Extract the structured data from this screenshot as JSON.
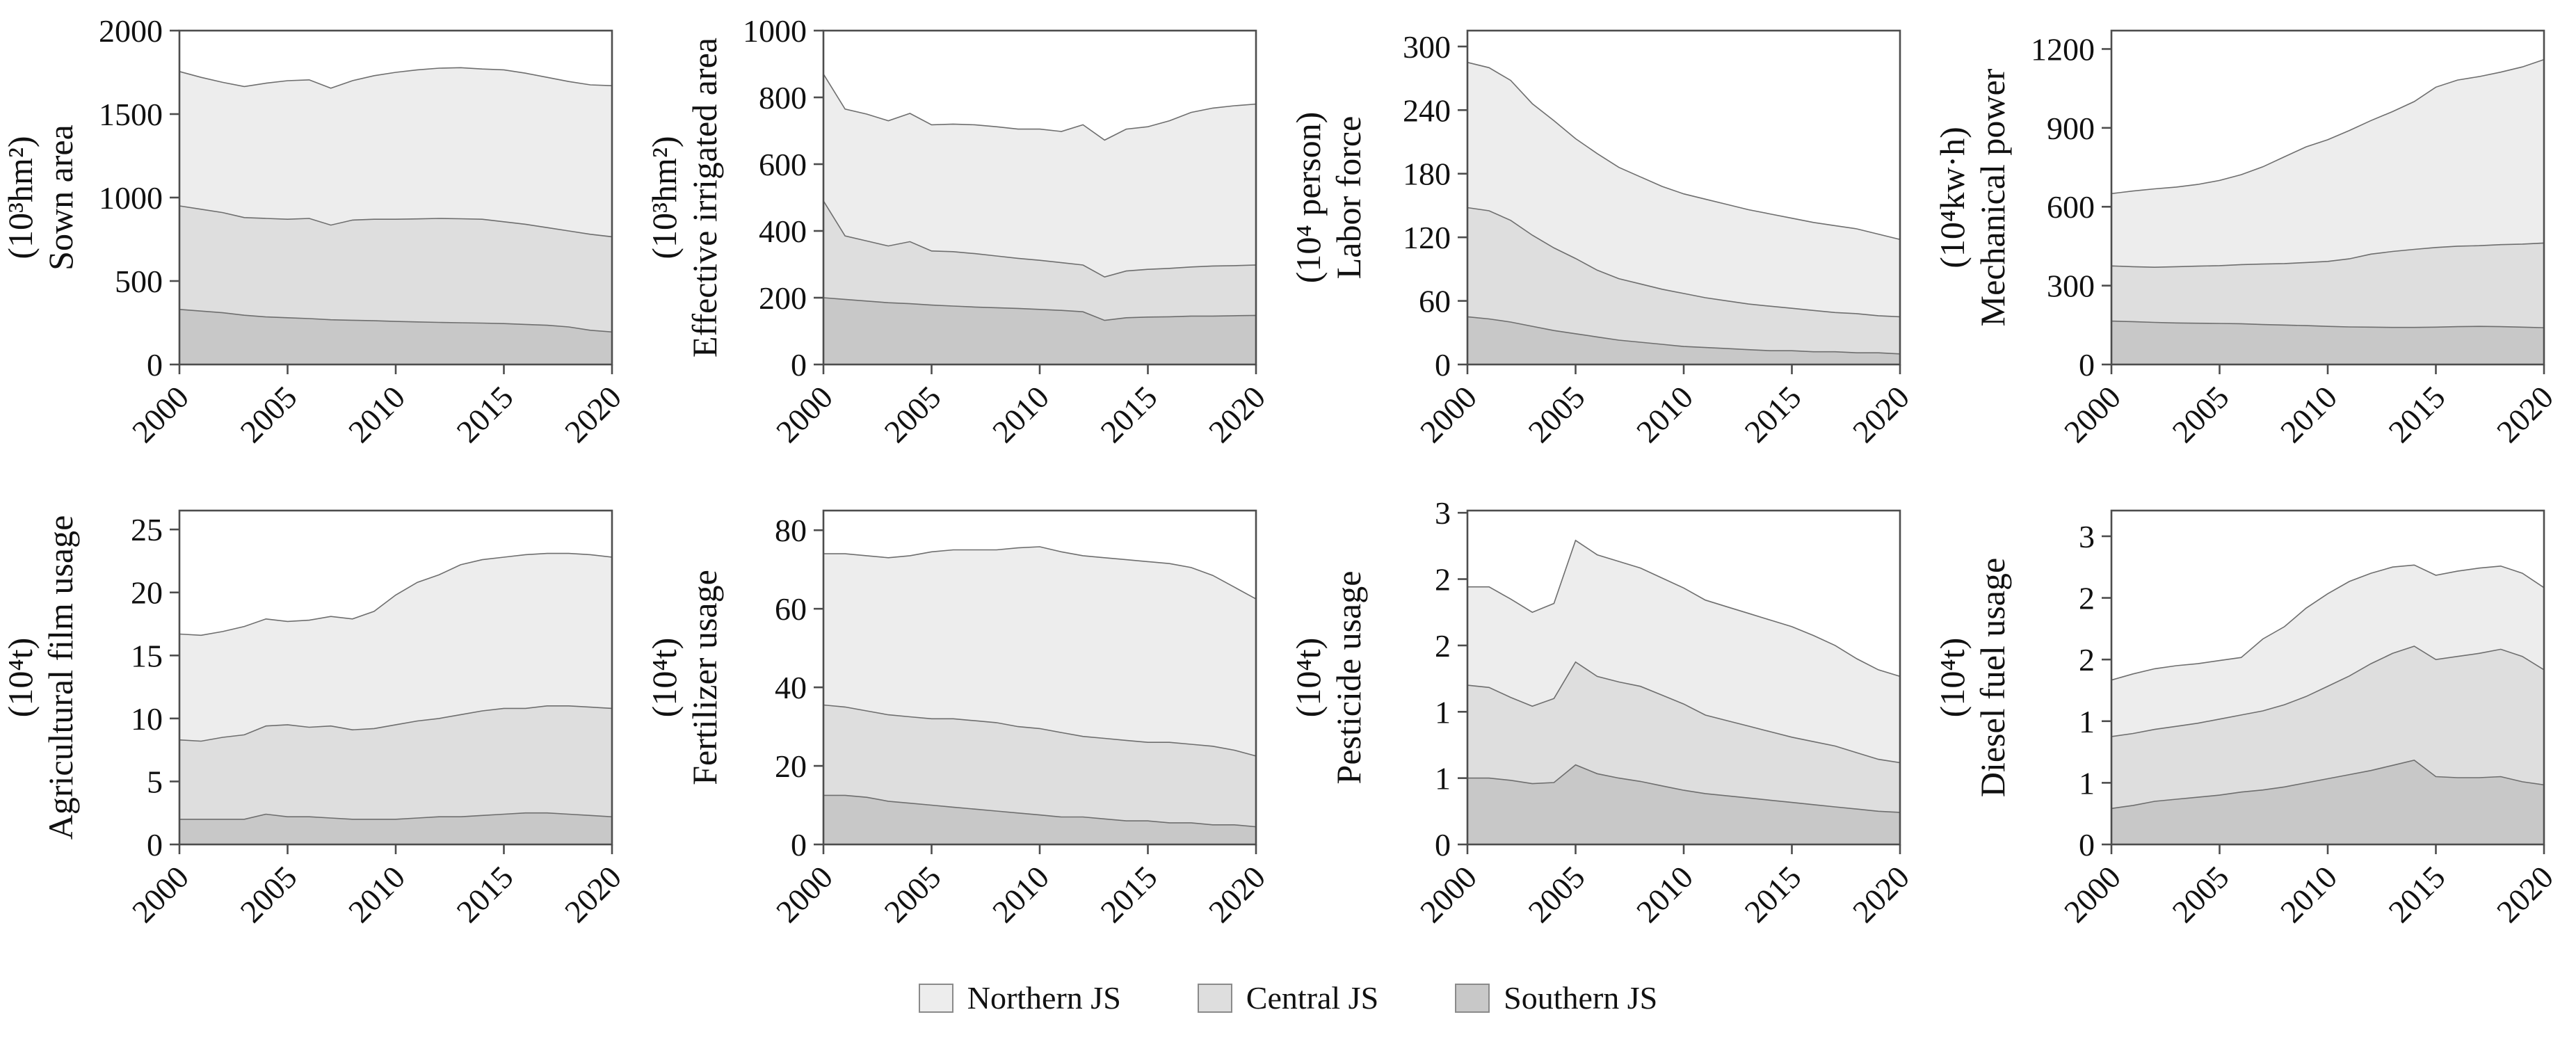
{
  "legend": {
    "items": [
      {
        "label": "Northern JS",
        "color": "#ededed"
      },
      {
        "label": "Central JS",
        "color": "#dedede"
      },
      {
        "label": "Southern JS",
        "color": "#c8c8c8"
      }
    ]
  },
  "style_colors": {
    "area_edge": "#6e6e6e",
    "frame": "#4d4d4d",
    "text": "#111111"
  },
  "chart_data": [
    {
      "id": "sown-area",
      "type": "area",
      "stacked": true,
      "ylabel": "Sown area",
      "unit": "(10³hm²)",
      "x": [
        2000,
        2001,
        2002,
        2003,
        2004,
        2005,
        2006,
        2007,
        2008,
        2009,
        2010,
        2011,
        2012,
        2013,
        2014,
        2015,
        2016,
        2017,
        2018,
        2019,
        2020
      ],
      "xticks": [
        2000,
        2005,
        2010,
        2015,
        2020
      ],
      "ylim": [
        0,
        2000
      ],
      "yticks": [
        0,
        500,
        1000,
        1500,
        2000
      ],
      "ytick_labels": [
        "0",
        "500",
        "1000",
        "1500",
        "2000"
      ],
      "series": [
        {
          "name": "Southern JS",
          "color": "#c8c8c8",
          "values": [
            330,
            320,
            310,
            295,
            285,
            280,
            275,
            268,
            265,
            262,
            258,
            255,
            252,
            250,
            248,
            245,
            240,
            235,
            225,
            205,
            195
          ]
        },
        {
          "name": "Central JS",
          "color": "#dedede",
          "values": [
            620,
            610,
            600,
            585,
            590,
            590,
            600,
            567,
            600,
            608,
            612,
            617,
            623,
            623,
            622,
            610,
            600,
            585,
            575,
            575,
            570
          ]
        },
        {
          "name": "Northern JS",
          "color": "#ededed",
          "values": [
            805,
            790,
            780,
            785,
            810,
            830,
            830,
            820,
            835,
            860,
            880,
            893,
            900,
            905,
            900,
            910,
            905,
            900,
            895,
            895,
            905
          ]
        }
      ]
    },
    {
      "id": "effective-irrigated-area",
      "type": "area",
      "stacked": true,
      "ylabel": "Effective irrigated area",
      "unit": "(10³hm²)",
      "x": [
        2000,
        2001,
        2002,
        2003,
        2004,
        2005,
        2006,
        2007,
        2008,
        2009,
        2010,
        2011,
        2012,
        2013,
        2014,
        2015,
        2016,
        2017,
        2018,
        2019,
        2020
      ],
      "xticks": [
        2000,
        2005,
        2010,
        2015,
        2020
      ],
      "ylim": [
        0,
        1000
      ],
      "yticks": [
        0,
        200,
        400,
        600,
        800,
        1000
      ],
      "ytick_labels": [
        "0",
        "200",
        "400",
        "600",
        "800",
        "1000"
      ],
      "series": [
        {
          "name": "Southern JS",
          "color": "#c8c8c8",
          "values": [
            200,
            195,
            190,
            185,
            182,
            178,
            175,
            172,
            170,
            168,
            165,
            162,
            158,
            132,
            140,
            142,
            143,
            145,
            145,
            146,
            147
          ]
        },
        {
          "name": "Central JS",
          "color": "#dedede",
          "values": [
            290,
            190,
            180,
            170,
            186,
            162,
            163,
            160,
            155,
            150,
            147,
            143,
            140,
            130,
            140,
            143,
            145,
            147,
            150,
            150,
            151
          ]
        },
        {
          "name": "Northern JS",
          "color": "#ededed",
          "values": [
            380,
            380,
            380,
            375,
            384,
            378,
            382,
            386,
            387,
            387,
            393,
            393,
            420,
            410,
            425,
            427,
            442,
            463,
            473,
            479,
            482
          ]
        }
      ]
    },
    {
      "id": "labor-force",
      "type": "area",
      "stacked": true,
      "ylabel": "Labor force",
      "unit": "(10⁴ person)",
      "x": [
        2000,
        2001,
        2002,
        2003,
        2004,
        2005,
        2006,
        2007,
        2008,
        2009,
        2010,
        2011,
        2012,
        2013,
        2014,
        2015,
        2016,
        2017,
        2018,
        2019,
        2020
      ],
      "xticks": [
        2000,
        2005,
        2010,
        2015,
        2020
      ],
      "ylim": [
        0,
        315
      ],
      "yticks": [
        0,
        60,
        120,
        180,
        240,
        300
      ],
      "ytick_labels": [
        "0",
        "60",
        "120",
        "180",
        "240",
        "300"
      ],
      "series": [
        {
          "name": "Southern JS",
          "color": "#c8c8c8",
          "values": [
            45,
            43,
            40,
            36,
            32,
            29,
            26,
            23,
            21,
            19,
            17,
            16,
            15,
            14,
            13,
            13,
            12,
            12,
            11,
            11,
            10
          ]
        },
        {
          "name": "Central JS",
          "color": "#dedede",
          "values": [
            103,
            102,
            96,
            86,
            78,
            71,
            63,
            58,
            55,
            52,
            50,
            47,
            45,
            43,
            42,
            40,
            39,
            37,
            37,
            35,
            35
          ]
        },
        {
          "name": "Northern JS",
          "color": "#ededed",
          "values": [
            137,
            135,
            132,
            124,
            120,
            113,
            110,
            105,
            101,
            97,
            94,
            93,
            91,
            89,
            87,
            85,
            83,
            82,
            80,
            77,
            73
          ]
        }
      ]
    },
    {
      "id": "mechanical-power",
      "type": "area",
      "stacked": true,
      "ylabel": "Mechanical power",
      "unit": "(10⁴kw·h)",
      "x": [
        2000,
        2001,
        2002,
        2003,
        2004,
        2005,
        2006,
        2007,
        2008,
        2009,
        2010,
        2011,
        2012,
        2013,
        2014,
        2015,
        2016,
        2017,
        2018,
        2019,
        2020
      ],
      "xticks": [
        2000,
        2005,
        2010,
        2015,
        2020
      ],
      "ylim": [
        0,
        1270
      ],
      "yticks": [
        0,
        300,
        600,
        900,
        1200
      ],
      "ytick_labels": [
        "0",
        "300",
        "600",
        "900",
        "1200"
      ],
      "series": [
        {
          "name": "Southern JS",
          "color": "#c8c8c8",
          "values": [
            165,
            163,
            160,
            158,
            157,
            156,
            155,
            152,
            150,
            148,
            145,
            143,
            142,
            141,
            141,
            142,
            144,
            145,
            144,
            142,
            140
          ]
        },
        {
          "name": "Central JS",
          "color": "#dedede",
          "values": [
            210,
            209,
            210,
            214,
            217,
            220,
            225,
            230,
            234,
            240,
            247,
            259,
            278,
            289,
            297,
            303,
            306,
            307,
            312,
            316,
            322
          ]
        },
        {
          "name": "Northern JS",
          "color": "#ededed",
          "values": [
            275,
            288,
            298,
            303,
            311,
            324,
            342,
            370,
            406,
            440,
            463,
            488,
            508,
            532,
            562,
            610,
            632,
            643,
            656,
            674,
            698
          ]
        }
      ]
    },
    {
      "id": "agricultural-film-usage",
      "type": "area",
      "stacked": true,
      "ylabel": "Agricultural film usage",
      "unit": "(10⁴t)",
      "x": [
        2000,
        2001,
        2002,
        2003,
        2004,
        2005,
        2006,
        2007,
        2008,
        2009,
        2010,
        2011,
        2012,
        2013,
        2014,
        2015,
        2016,
        2017,
        2018,
        2019,
        2020
      ],
      "xticks": [
        2000,
        2005,
        2010,
        2015,
        2020
      ],
      "ylim": [
        0,
        26.5
      ],
      "yticks": [
        0,
        5,
        10,
        15,
        20,
        25
      ],
      "ytick_labels": [
        "0",
        "5",
        "10",
        "15",
        "20",
        "25"
      ],
      "series": [
        {
          "name": "Southern JS",
          "color": "#c8c8c8",
          "values": [
            2.0,
            2.0,
            2.0,
            2.0,
            2.4,
            2.2,
            2.2,
            2.1,
            2.0,
            2.0,
            2.0,
            2.1,
            2.2,
            2.2,
            2.3,
            2.4,
            2.5,
            2.5,
            2.4,
            2.3,
            2.2
          ]
        },
        {
          "name": "Central JS",
          "color": "#dedede",
          "values": [
            6.3,
            6.2,
            6.5,
            6.7,
            7.0,
            7.3,
            7.1,
            7.3,
            7.1,
            7.2,
            7.5,
            7.7,
            7.8,
            8.1,
            8.3,
            8.4,
            8.3,
            8.5,
            8.6,
            8.6,
            8.6
          ]
        },
        {
          "name": "Northern JS",
          "color": "#ededed",
          "values": [
            8.4,
            8.4,
            8.4,
            8.6,
            8.5,
            8.2,
            8.5,
            8.7,
            8.8,
            9.3,
            10.3,
            11.0,
            11.4,
            11.9,
            12.0,
            12.0,
            12.2,
            12.1,
            12.1,
            12.1,
            12.0
          ]
        }
      ]
    },
    {
      "id": "fertilizer-usage",
      "type": "area",
      "stacked": true,
      "ylabel": "Fertilizer usage",
      "unit": "(10⁴t)",
      "x": [
        2000,
        2001,
        2002,
        2003,
        2004,
        2005,
        2006,
        2007,
        2008,
        2009,
        2010,
        2011,
        2012,
        2013,
        2014,
        2015,
        2016,
        2017,
        2018,
        2019,
        2020
      ],
      "xticks": [
        2000,
        2005,
        2010,
        2015,
        2020
      ],
      "ylim": [
        0,
        85
      ],
      "yticks": [
        0,
        20,
        40,
        60,
        80
      ],
      "ytick_labels": [
        "0",
        "20",
        "40",
        "60",
        "80"
      ],
      "series": [
        {
          "name": "Southern JS",
          "color": "#c8c8c8",
          "values": [
            12.5,
            12.5,
            12.0,
            11.0,
            10.5,
            10.0,
            9.5,
            9.0,
            8.5,
            8.0,
            7.5,
            7.0,
            7.0,
            6.5,
            6.0,
            6.0,
            5.5,
            5.5,
            5.0,
            5.0,
            4.5
          ]
        },
        {
          "name": "Central JS",
          "color": "#dedede",
          "values": [
            23.0,
            22.5,
            22.0,
            22.0,
            22.0,
            22.0,
            22.5,
            22.5,
            22.5,
            22.0,
            22.0,
            21.5,
            20.5,
            20.5,
            20.5,
            20.0,
            20.5,
            20.0,
            20.0,
            19.0,
            18.0
          ]
        },
        {
          "name": "Northern JS",
          "color": "#ededed",
          "values": [
            38.5,
            39.0,
            39.5,
            40.0,
            41.0,
            42.5,
            43.0,
            43.5,
            44.0,
            45.5,
            46.3,
            46.0,
            46.0,
            46.0,
            46.0,
            46.0,
            45.5,
            45.0,
            43.5,
            41.5,
            40.0
          ]
        }
      ]
    },
    {
      "id": "pesticide-usage",
      "type": "area",
      "stacked": true,
      "ylabel": "Pesticide usage",
      "unit": "(10⁴t)",
      "x": [
        2000,
        2001,
        2002,
        2003,
        2004,
        2005,
        2006,
        2007,
        2008,
        2009,
        2010,
        2011,
        2012,
        2013,
        2014,
        2015,
        2016,
        2017,
        2018,
        2019,
        2020
      ],
      "xticks": [
        2000,
        2005,
        2010,
        2015,
        2020
      ],
      "ylim": [
        0,
        3.02
      ],
      "yticks": [
        0,
        0.6,
        1.2,
        1.8,
        2.4,
        3.0
      ],
      "ytick_labels": [
        "0",
        "1",
        "1",
        "2",
        "2",
        "3"
      ],
      "series": [
        {
          "name": "Southern JS",
          "color": "#c8c8c8",
          "values": [
            0.6,
            0.6,
            0.58,
            0.55,
            0.56,
            0.72,
            0.64,
            0.6,
            0.57,
            0.53,
            0.49,
            0.46,
            0.44,
            0.42,
            0.4,
            0.38,
            0.36,
            0.34,
            0.32,
            0.3,
            0.29
          ]
        },
        {
          "name": "Central JS",
          "color": "#dedede",
          "values": [
            0.84,
            0.82,
            0.75,
            0.7,
            0.76,
            0.93,
            0.88,
            0.87,
            0.86,
            0.82,
            0.78,
            0.71,
            0.68,
            0.65,
            0.62,
            0.59,
            0.57,
            0.55,
            0.51,
            0.47,
            0.45
          ]
        },
        {
          "name": "Northern JS",
          "color": "#ededed",
          "values": [
            0.89,
            0.91,
            0.89,
            0.85,
            0.86,
            1.1,
            1.1,
            1.09,
            1.07,
            1.06,
            1.05,
            1.04,
            1.03,
            1.02,
            1.01,
            1.0,
            0.96,
            0.91,
            0.85,
            0.81,
            0.78
          ]
        }
      ]
    },
    {
      "id": "diesel-fuel-usage",
      "type": "area",
      "stacked": true,
      "ylabel": "Diesel fuel usage",
      "unit": "(10⁴t)",
      "x": [
        2000,
        2001,
        2002,
        2003,
        2004,
        2005,
        2006,
        2007,
        2008,
        2009,
        2010,
        2011,
        2012,
        2013,
        2014,
        2015,
        2016,
        2017,
        2018,
        2019,
        2020
      ],
      "xticks": [
        2000,
        2005,
        2010,
        2015,
        2020
      ],
      "ylim": [
        0,
        3.25
      ],
      "yticks": [
        0,
        0.6,
        1.2,
        1.8,
        2.4,
        3.0
      ],
      "ytick_labels": [
        "0",
        "1",
        "1",
        "2",
        "2",
        "3"
      ],
      "series": [
        {
          "name": "Southern JS",
          "color": "#c8c8c8",
          "values": [
            0.35,
            0.38,
            0.42,
            0.44,
            0.46,
            0.48,
            0.51,
            0.53,
            0.56,
            0.6,
            0.64,
            0.68,
            0.72,
            0.77,
            0.82,
            0.66,
            0.65,
            0.65,
            0.66,
            0.61,
            0.58
          ]
        },
        {
          "name": "Central JS",
          "color": "#dedede",
          "values": [
            0.7,
            0.7,
            0.7,
            0.71,
            0.72,
            0.74,
            0.75,
            0.77,
            0.8,
            0.84,
            0.9,
            0.96,
            1.04,
            1.09,
            1.11,
            1.14,
            1.18,
            1.21,
            1.24,
            1.22,
            1.12
          ]
        },
        {
          "name": "Northern JS",
          "color": "#ededed",
          "values": [
            0.55,
            0.58,
            0.59,
            0.59,
            0.58,
            0.57,
            0.56,
            0.7,
            0.76,
            0.86,
            0.9,
            0.92,
            0.88,
            0.84,
            0.79,
            0.82,
            0.83,
            0.83,
            0.81,
            0.81,
            0.8
          ]
        }
      ]
    }
  ]
}
